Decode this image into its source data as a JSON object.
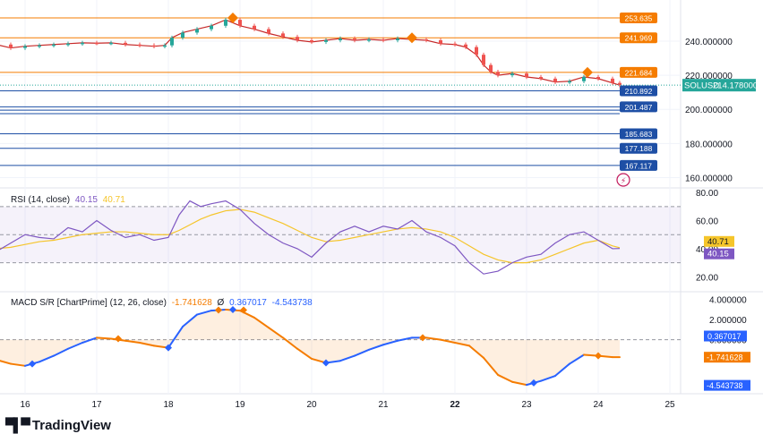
{
  "chart_data": {
    "type": "candlestick",
    "symbol": "SOLUSD",
    "last_price": "214.178000",
    "x_ticks": [
      "16",
      "17",
      "18",
      "19",
      "20",
      "21",
      "22",
      "23",
      "24",
      "25"
    ],
    "price_axis": {
      "ticks": [
        "240.000000",
        "220.000000",
        "200.000000",
        "180.000000",
        "160.000000"
      ],
      "ylim": [
        155,
        262
      ]
    },
    "price_series": {
      "name": "SOLUSD",
      "x": [
        15.6,
        15.8,
        16.0,
        16.2,
        16.4,
        16.6,
        16.8,
        17.0,
        17.2,
        17.4,
        17.6,
        17.8,
        17.95,
        18.05,
        18.2,
        18.4,
        18.6,
        18.8,
        19.0,
        19.2,
        19.4,
        19.6,
        19.8,
        20.0,
        20.2,
        20.4,
        20.6,
        20.8,
        21.0,
        21.2,
        21.4,
        21.6,
        21.8,
        22.0,
        22.15,
        22.3,
        22.4,
        22.5,
        22.6,
        22.8,
        23.0,
        23.2,
        23.4,
        23.6,
        23.8,
        24.0,
        24.2,
        24.3
      ],
      "y": [
        238,
        236,
        237,
        237.5,
        238,
        238.5,
        239,
        238.8,
        239,
        238,
        237.5,
        237,
        237.5,
        242,
        245,
        247,
        249,
        252.5,
        249,
        247,
        244.5,
        242.5,
        240.5,
        239.5,
        240.5,
        241.5,
        240.5,
        241,
        240.5,
        241.5,
        241,
        240.5,
        238.5,
        238,
        236.5,
        232,
        226,
        222,
        220,
        221,
        219,
        218,
        216,
        216.5,
        219,
        218,
        215.5,
        214.178
      ]
    },
    "levels": [
      {
        "label": "253.635",
        "value": 253.635,
        "color": "#f57c00",
        "style": "solid"
      },
      {
        "label": "241.969",
        "value": 241.969,
        "color": "#f57c00",
        "style": "solid"
      },
      {
        "label": "221.684",
        "value": 221.684,
        "color": "#f57c00",
        "style": "solid"
      },
      {
        "label": "210.892",
        "value": 210.892,
        "color": "#1e4fa5",
        "style": "solid"
      },
      {
        "label": "201.487",
        "value": 201.487,
        "color": "#1e4fa5",
        "style": "solid"
      },
      {
        "label": "",
        "value": 199.5,
        "color": "#1e4fa5",
        "style": "solid"
      },
      {
        "label": "",
        "value": 197.5,
        "color": "#1e4fa5",
        "style": "solid"
      },
      {
        "label": "185.683",
        "value": 185.683,
        "color": "#1e4fa5",
        "style": "solid"
      },
      {
        "label": "177.188",
        "value": 177.188,
        "color": "#1e4fa5",
        "style": "solid"
      },
      {
        "label": "167.117",
        "value": 167.117,
        "color": "#1e4fa5",
        "style": "solid"
      }
    ],
    "resistance_markers": [
      {
        "x": 18.9,
        "y": 253.635
      },
      {
        "x": 21.4,
        "y": 241.969
      },
      {
        "x": 23.85,
        "y": 221.684
      }
    ],
    "rsi": {
      "title": "RSI (14, close)",
      "value_rsi": "40.15",
      "value_ma": "40.71",
      "ticks": [
        "80.00",
        "60.00",
        "40.00",
        "20.00"
      ],
      "ylim": [
        10,
        82
      ],
      "band_top": 70,
      "band_mid": 50,
      "band_bottom": 30,
      "rsi_color": "#7e57c2",
      "ma_color": "#f5c52b",
      "x": [
        15.6,
        15.8,
        16.0,
        16.2,
        16.4,
        16.6,
        16.8,
        17.0,
        17.2,
        17.4,
        17.6,
        17.8,
        18.0,
        18.15,
        18.3,
        18.45,
        18.6,
        18.8,
        19.0,
        19.2,
        19.4,
        19.6,
        19.8,
        20.0,
        20.2,
        20.4,
        20.6,
        20.8,
        21.0,
        21.2,
        21.4,
        21.6,
        21.8,
        22.0,
        22.2,
        22.4,
        22.6,
        22.8,
        23.0,
        23.2,
        23.4,
        23.6,
        23.8,
        24.0,
        24.2,
        24.3
      ],
      "y_rsi": [
        38,
        44,
        50,
        48,
        47,
        55,
        52,
        60,
        53,
        48,
        50,
        46,
        48,
        64,
        74,
        70,
        72,
        74,
        68,
        58,
        50,
        44,
        40,
        34,
        44,
        52,
        56,
        52,
        56,
        54,
        60,
        52,
        48,
        42,
        30,
        22,
        24,
        30,
        34,
        36,
        44,
        50,
        52,
        46,
        40,
        40.15
      ],
      "y_ma": [
        40,
        41,
        43,
        45,
        46,
        48,
        50,
        51,
        52,
        52,
        51,
        50,
        50,
        53,
        57,
        61,
        64,
        67,
        68,
        66,
        62,
        58,
        53,
        48,
        45,
        46,
        48,
        50,
        52,
        54,
        55,
        54,
        52,
        48,
        42,
        36,
        32,
        30,
        30,
        32,
        36,
        40,
        44,
        46,
        42,
        40.71
      ]
    },
    "macd": {
      "title": "MACD S/R [ChartPrime] (12, 26, close)",
      "value_macd": "-1.741628",
      "value_flag": "Ø",
      "value_signal": "0.367017",
      "value_hist": "-4.543738",
      "ticks": [
        "4.000000",
        "2.000000",
        "0.000000",
        "-4.543738"
      ],
      "ylim": [
        -5.2,
        4.6
      ],
      "pos_color": "#2962ff",
      "neg_color": "#f57c00",
      "x": [
        15.6,
        15.8,
        16.0,
        16.2,
        16.4,
        16.6,
        16.8,
        17.0,
        17.2,
        17.4,
        17.6,
        17.8,
        18.0,
        18.2,
        18.4,
        18.6,
        18.8,
        19.0,
        19.2,
        19.4,
        19.6,
        19.8,
        20.0,
        20.2,
        20.4,
        20.6,
        20.8,
        21.0,
        21.2,
        21.4,
        21.6,
        21.8,
        22.0,
        22.2,
        22.4,
        22.6,
        22.8,
        23.0,
        23.2,
        23.4,
        23.6,
        23.8,
        24.0,
        24.2,
        24.3
      ],
      "y_macd": [
        -2.0,
        -2.4,
        -2.6,
        -2.2,
        -1.6,
        -0.9,
        -0.3,
        0.2,
        0.1,
        -0.1,
        -0.3,
        -0.6,
        -0.8,
        1.3,
        2.5,
        2.9,
        3.0,
        2.9,
        2.2,
        1.2,
        0.2,
        -0.9,
        -1.9,
        -2.3,
        -2.1,
        -1.6,
        -1.0,
        -0.5,
        -0.1,
        0.2,
        0.2,
        0.0,
        -0.3,
        -0.6,
        -1.8,
        -3.5,
        -4.2,
        -4.5,
        -4.1,
        -3.6,
        -2.4,
        -1.5,
        -1.6,
        -1.74,
        -1.741628
      ],
      "markers": [
        {
          "x": 16.1,
          "y": -2.4,
          "color": "#2962ff"
        },
        {
          "x": 17.3,
          "y": 0.1,
          "color": "#f57c00"
        },
        {
          "x": 18.0,
          "y": -0.8,
          "color": "#2962ff"
        },
        {
          "x": 18.7,
          "y": 2.95,
          "color": "#f57c00"
        },
        {
          "x": 18.9,
          "y": 3.0,
          "color": "#2962ff"
        },
        {
          "x": 19.05,
          "y": 2.95,
          "color": "#f57c00"
        },
        {
          "x": 20.2,
          "y": -2.3,
          "color": "#2962ff"
        },
        {
          "x": 21.55,
          "y": 0.2,
          "color": "#f57c00"
        },
        {
          "x": 23.1,
          "y": -4.3,
          "color": "#2962ff"
        },
        {
          "x": 24.0,
          "y": -1.6,
          "color": "#f57c00"
        }
      ]
    },
    "grid": true,
    "legend": "top-left"
  },
  "brand": {
    "name": "TradingView"
  }
}
